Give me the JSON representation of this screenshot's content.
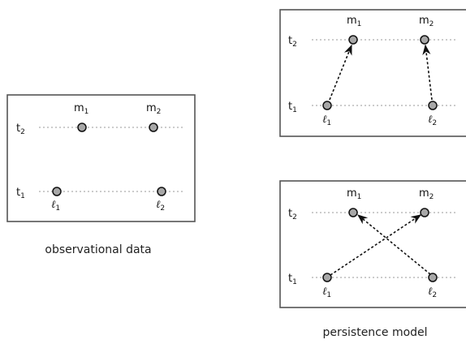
{
  "labels": {
    "t1": "t",
    "t1_sub": "1",
    "t2": "t",
    "t2_sub": "2",
    "m1": "m",
    "m1_sub": "1",
    "m2": "m",
    "m2_sub": "2",
    "l1": "ℓ",
    "l1_sub": "1",
    "l2": "ℓ",
    "l2_sub": "2"
  },
  "panels": {
    "observational": {
      "caption": "observational data",
      "edges": []
    },
    "persistence_top": {
      "edges": [
        [
          "l1",
          "m1"
        ],
        [
          "l2",
          "m2"
        ]
      ]
    },
    "persistence_bottom": {
      "edges": [
        [
          "l1",
          "m2"
        ],
        [
          "l2",
          "m1"
        ]
      ]
    },
    "persistence_caption": "persistence model"
  },
  "style": {
    "node_fill": "#a7a7a7",
    "frame_stroke": "#555555"
  }
}
